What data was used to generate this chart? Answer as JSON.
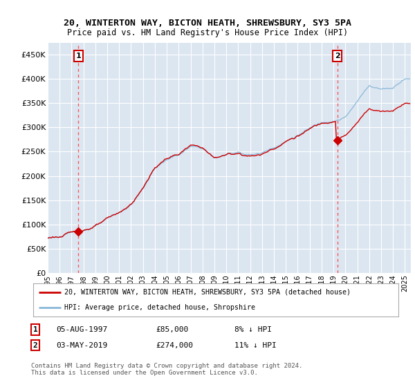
{
  "title": "20, WINTERTON WAY, BICTON HEATH, SHREWSBURY, SY3 5PA",
  "subtitle": "Price paid vs. HM Land Registry's House Price Index (HPI)",
  "ylabel_ticks": [
    "£0",
    "£50K",
    "£100K",
    "£150K",
    "£200K",
    "£250K",
    "£300K",
    "£350K",
    "£400K",
    "£450K"
  ],
  "ylim": [
    0,
    475000
  ],
  "xlim_start": 1995.0,
  "xlim_end": 2025.5,
  "marker1_x": 1997.583,
  "marker1_y": 85000,
  "marker2_x": 2019.333,
  "marker2_y": 274000,
  "legend_entry1": "20, WINTERTON WAY, BICTON HEATH, SHREWSBURY, SY3 5PA (detached house)",
  "legend_entry2": "HPI: Average price, detached house, Shropshire",
  "table_row1": [
    "1",
    "05-AUG-1997",
    "£85,000",
    "8% ↓ HPI"
  ],
  "table_row2": [
    "2",
    "03-MAY-2019",
    "£274,000",
    "11% ↓ HPI"
  ],
  "footnote": "Contains HM Land Registry data © Crown copyright and database right 2024.\nThis data is licensed under the Open Government Licence v3.0.",
  "bg_color": "#dce6f1",
  "hpi_color": "#89b8d8",
  "price_color": "#cc0000",
  "vline_color": "#ff5555",
  "grid_color": "#ffffff"
}
